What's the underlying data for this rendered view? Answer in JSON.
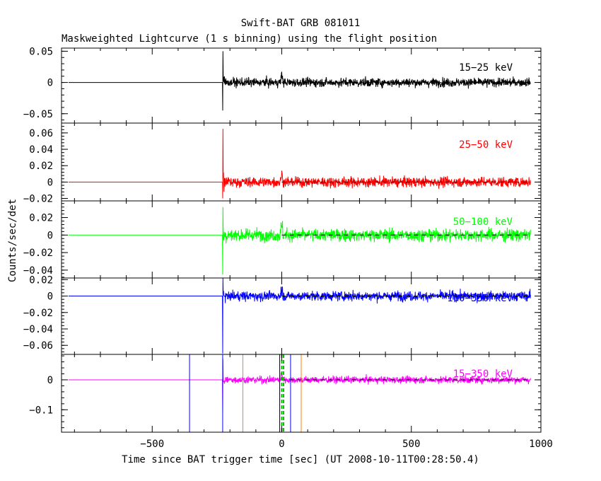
{
  "title": "Swift-BAT GRB 081011",
  "subtitle": "Maskweighted Lightcurve (1 s binning) using the flight position",
  "ylabel": "Counts/sec/det",
  "xlabel": "Time since BAT trigger time [sec] (UT 2008-10-11T00:28:50.4)",
  "chart_data": [
    {
      "type": "line",
      "series": [
        {
          "name": "15-25 keV",
          "color": "#000000"
        }
      ],
      "xlim": [
        -850,
        1000
      ],
      "ylim": [
        -0.065,
        0.055
      ],
      "yticks": [
        -0.05,
        0,
        0.05
      ],
      "ytick_labels": [
        "−0.05",
        "0",
        "0.05"
      ],
      "data_start": -823,
      "burst_onset": -228,
      "data_end": 960,
      "noise_sigma": 0.0055,
      "spike_peak": 0.05,
      "spike_trough": -0.045,
      "annotation": "15−25 keV"
    },
    {
      "type": "line",
      "series": [
        {
          "name": "25-50 keV",
          "color": "#ff0000"
        }
      ],
      "xlim": [
        -850,
        1000
      ],
      "ylim": [
        -0.023,
        0.072
      ],
      "yticks": [
        -0.02,
        0,
        0.02,
        0.04,
        0.06
      ],
      "ytick_labels": [
        "−0.02",
        "0",
        "0.02",
        "0.04",
        "0.06"
      ],
      "data_start": -823,
      "burst_onset": -228,
      "data_end": 960,
      "noise_sigma": 0.0048,
      "spike_peak": 0.065,
      "spike_trough": -0.02,
      "annotation": "25−50 keV"
    },
    {
      "type": "line",
      "series": [
        {
          "name": "50-100 keV",
          "color": "#00ff00"
        }
      ],
      "xlim": [
        -850,
        1000
      ],
      "ylim": [
        -0.049,
        0.039
      ],
      "yticks": [
        -0.04,
        -0.02,
        0,
        0.02
      ],
      "ytick_labels": [
        "−0.04",
        "−0.02",
        "0",
        "0.02"
      ],
      "data_start": -823,
      "burst_onset": -228,
      "data_end": 960,
      "noise_sigma": 0.0055,
      "spike_peak": 0.032,
      "spike_trough": -0.045,
      "annotation": "50−100 keV"
    },
    {
      "type": "line",
      "series": [
        {
          "name": "100-350 keV",
          "color": "#0000ff"
        }
      ],
      "xlim": [
        -850,
        1000
      ],
      "ylim": [
        -0.071,
        0.022
      ],
      "yticks": [
        -0.06,
        -0.04,
        -0.02,
        0,
        0.02
      ],
      "ytick_labels": [
        "−0.06",
        "−0.04",
        "−0.02",
        "0",
        "0.02"
      ],
      "data_start": -823,
      "burst_onset": -228,
      "data_end": 960,
      "noise_sigma": 0.0045,
      "spike_peak": 0.022,
      "spike_trough": -0.07,
      "annotation": "100−350 keV"
    },
    {
      "type": "line",
      "series": [
        {
          "name": "15-350 keV",
          "color": "#ff00ff"
        }
      ],
      "xlim": [
        -850,
        1000
      ],
      "ylim": [
        -0.175,
        0.085
      ],
      "yticks": [
        -0.1,
        0
      ],
      "ytick_labels": [
        "−0.1",
        "0"
      ],
      "xticks": [
        -500,
        0,
        500,
        1000
      ],
      "xtick_labels": [
        "−500",
        "0",
        "500",
        "1000"
      ],
      "data_start": -823,
      "burst_onset": -228,
      "data_end": 960,
      "noise_sigma": 0.009,
      "spike_peak": 0.07,
      "spike_trough": -0.11,
      "annotation": "15−350 keV",
      "markers": [
        {
          "x": -356,
          "color": "#0000ff",
          "style": "solid"
        },
        {
          "x": -228,
          "color": "#0000ff",
          "style": "solid"
        },
        {
          "x": -150,
          "color": "#ff8000",
          "style": "solid"
        },
        {
          "x": -8,
          "color": "#000000",
          "style": "solid"
        },
        {
          "x": 0,
          "color": "#00c000",
          "style": "dashed"
        },
        {
          "x": 7,
          "color": "#00c000",
          "style": "dashed"
        },
        {
          "x": 34,
          "color": "#0000ff",
          "style": "solid"
        },
        {
          "x": 75,
          "color": "#ff8000",
          "style": "solid"
        }
      ]
    }
  ]
}
